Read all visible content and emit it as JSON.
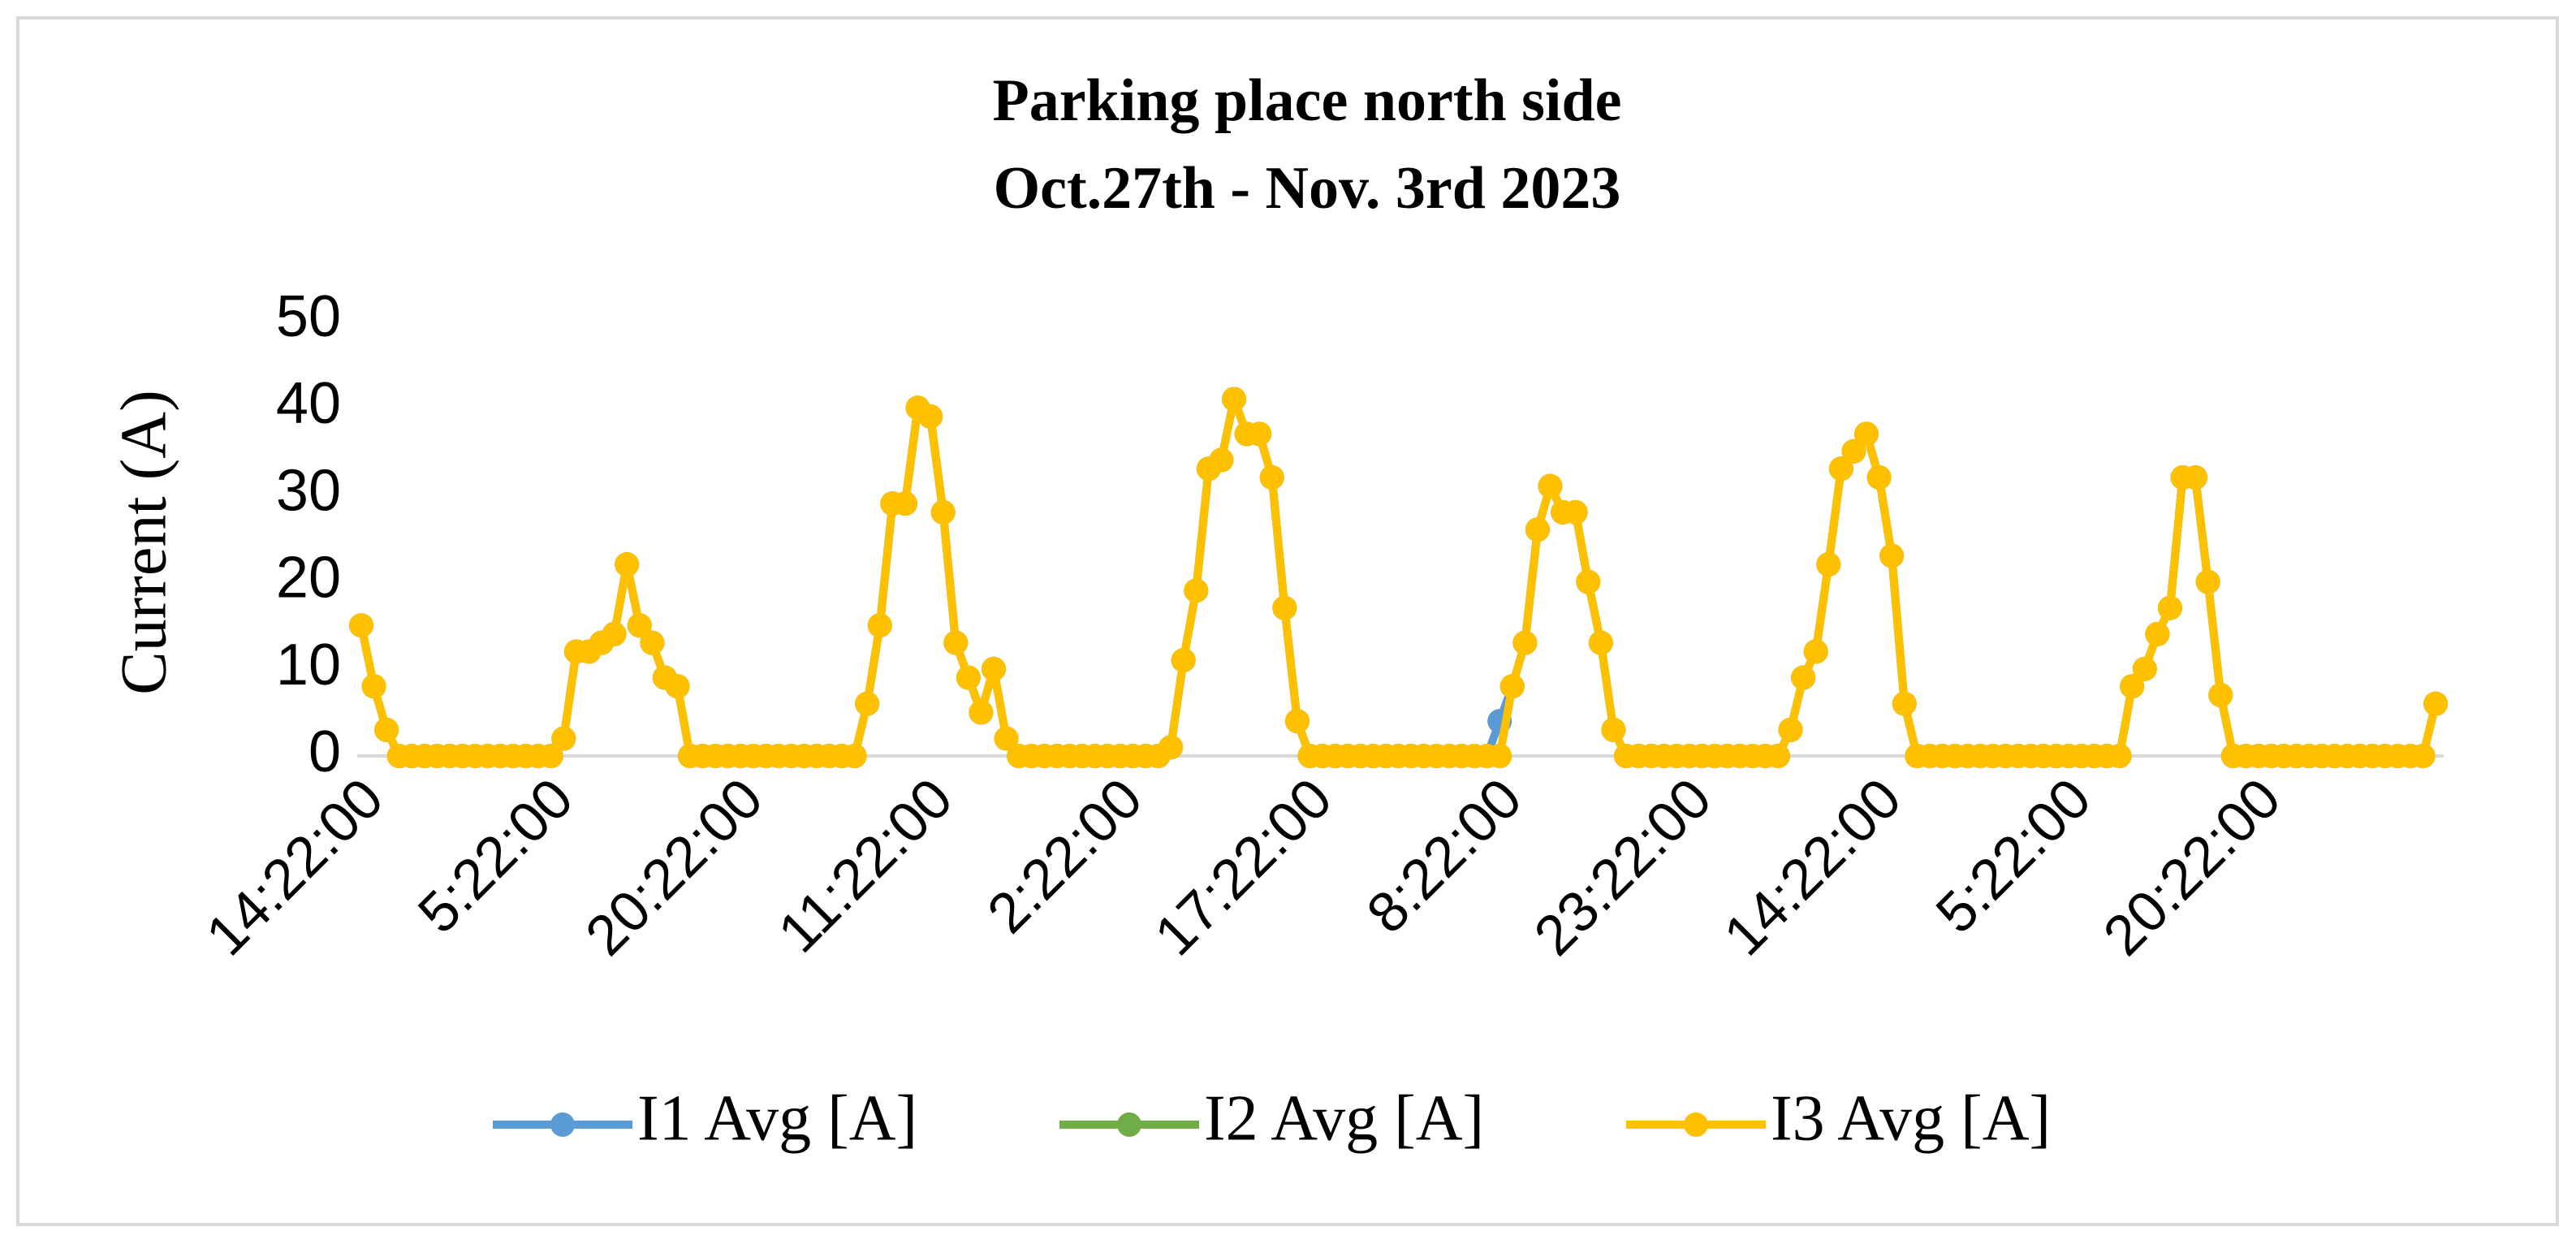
{
  "chart_data": {
    "type": "line",
    "title": "Parking place north side",
    "subtitle": "Oct.27th - Nov. 3rd 2023",
    "y_label": "Current (A)",
    "categories": [
      "14:22:00",
      null,
      null,
      null,
      null,
      null,
      null,
      null,
      null,
      null,
      null,
      null,
      null,
      null,
      null,
      "5:22:00",
      null,
      null,
      null,
      null,
      null,
      null,
      null,
      null,
      null,
      null,
      null,
      null,
      null,
      null,
      "20:22:00",
      null,
      null,
      null,
      null,
      null,
      null,
      null,
      null,
      null,
      null,
      null,
      null,
      null,
      null,
      "11:22:00",
      null,
      null,
      null,
      null,
      null,
      null,
      null,
      null,
      null,
      null,
      null,
      null,
      null,
      null,
      "2:22:00",
      null,
      null,
      null,
      null,
      null,
      null,
      null,
      null,
      null,
      null,
      null,
      null,
      null,
      null,
      "17:22:00",
      null,
      null,
      null,
      null,
      null,
      null,
      null,
      null,
      null,
      null,
      null,
      null,
      null,
      null,
      "8:22:00",
      null,
      null,
      null,
      null,
      null,
      null,
      null,
      null,
      null,
      null,
      null,
      null,
      null,
      null,
      "23:22:00",
      null,
      null,
      null,
      null,
      null,
      null,
      null,
      null,
      null,
      null,
      null,
      null,
      null,
      null,
      "14:22:00",
      null,
      null,
      null,
      null,
      null,
      null,
      null,
      null,
      null,
      null,
      null,
      null,
      null,
      null,
      "5:22:00",
      null,
      null,
      null,
      null,
      null,
      null,
      null,
      null,
      null,
      null,
      null,
      null,
      null,
      null,
      "20:22:00",
      null,
      null,
      null,
      null,
      null,
      null,
      null,
      null,
      null,
      null,
      null,
      null,
      null,
      null
    ],
    "series": [
      {
        "name": "I1 Avg [A]",
        "color": "#5b9bd5",
        "values": [
          15,
          8,
          3,
          0,
          0,
          0,
          0,
          0,
          0,
          0,
          0,
          0,
          0,
          0,
          0,
          0,
          2,
          12,
          12,
          13,
          14,
          22,
          15,
          13,
          9,
          8,
          0,
          0,
          0,
          0,
          0,
          0,
          0,
          0,
          0,
          0,
          0,
          0,
          0,
          0,
          6,
          15,
          29,
          29,
          40,
          39,
          28,
          13,
          9,
          5,
          10,
          2,
          0,
          0,
          0,
          0,
          0,
          0,
          0,
          0,
          0,
          0,
          0,
          0,
          1,
          11,
          19,
          33,
          34,
          41,
          37,
          37,
          32,
          17,
          4,
          0,
          0,
          0,
          0,
          0,
          0,
          0,
          0,
          0,
          0,
          0,
          0,
          0,
          0,
          0,
          4,
          8,
          13,
          26,
          31,
          28,
          28,
          20,
          13,
          3,
          0,
          0,
          0,
          0,
          0,
          0,
          0,
          0,
          0,
          0,
          0,
          0,
          0,
          3,
          9,
          12,
          22,
          33,
          35,
          37,
          32,
          23,
          6,
          0,
          0,
          0,
          0,
          0,
          0,
          0,
          0,
          0,
          0,
          0,
          0,
          0,
          0,
          0,
          0,
          0,
          8,
          10,
          14,
          17,
          32,
          32,
          20,
          7,
          0,
          0,
          0,
          0,
          0,
          0,
          0,
          0,
          0,
          0,
          0,
          0,
          0,
          0,
          0,
          0,
          6
        ]
      },
      {
        "name": "I2 Avg [A]",
        "color": "#70ad47",
        "values": [
          15,
          8,
          3,
          0,
          0,
          0,
          0,
          0,
          0,
          0,
          0,
          0,
          0,
          0,
          0,
          0,
          2,
          12,
          12,
          13,
          14,
          22,
          15,
          13,
          9,
          8,
          0,
          0,
          0,
          0,
          0,
          0,
          0,
          0,
          0,
          0,
          0,
          0,
          0,
          0,
          6,
          15,
          29,
          29,
          40,
          39,
          28,
          13,
          9,
          5,
          10,
          2,
          0,
          0,
          0,
          0,
          0,
          0,
          0,
          0,
          0,
          0,
          0,
          0,
          1,
          11,
          19,
          33,
          34,
          41,
          37,
          37,
          32,
          17,
          4,
          0,
          0,
          0,
          0,
          0,
          0,
          0,
          0,
          0,
          0,
          0,
          0,
          0,
          0,
          0,
          0,
          8,
          13,
          26,
          31,
          28,
          28,
          20,
          13,
          3,
          0,
          0,
          0,
          0,
          0,
          0,
          0,
          0,
          0,
          0,
          0,
          0,
          0,
          3,
          9,
          12,
          22,
          33,
          35,
          37,
          32,
          23,
          6,
          0,
          0,
          0,
          0,
          0,
          0,
          0,
          0,
          0,
          0,
          0,
          0,
          0,
          0,
          0,
          0,
          0,
          8,
          10,
          14,
          17,
          32,
          32,
          20,
          7,
          0,
          0,
          0,
          0,
          0,
          0,
          0,
          0,
          0,
          0,
          0,
          0,
          0,
          0,
          0,
          0,
          6
        ]
      },
      {
        "name": "I3 Avg [A]",
        "color": "#ffc000",
        "values": [
          15,
          8,
          3,
          0,
          0,
          0,
          0,
          0,
          0,
          0,
          0,
          0,
          0,
          0,
          0,
          0,
          2,
          12,
          12,
          13,
          14,
          22,
          15,
          13,
          9,
          8,
          0,
          0,
          0,
          0,
          0,
          0,
          0,
          0,
          0,
          0,
          0,
          0,
          0,
          0,
          6,
          15,
          29,
          29,
          40,
          39,
          28,
          13,
          9,
          5,
          10,
          2,
          0,
          0,
          0,
          0,
          0,
          0,
          0,
          0,
          0,
          0,
          0,
          0,
          1,
          11,
          19,
          33,
          34,
          41,
          37,
          37,
          32,
          17,
          4,
          0,
          0,
          0,
          0,
          0,
          0,
          0,
          0,
          0,
          0,
          0,
          0,
          0,
          0,
          0,
          0,
          8,
          13,
          26,
          31,
          28,
          28,
          20,
          13,
          3,
          0,
          0,
          0,
          0,
          0,
          0,
          0,
          0,
          0,
          0,
          0,
          0,
          0,
          3,
          9,
          12,
          22,
          33,
          35,
          37,
          32,
          23,
          6,
          0,
          0,
          0,
          0,
          0,
          0,
          0,
          0,
          0,
          0,
          0,
          0,
          0,
          0,
          0,
          0,
          0,
          8,
          10,
          14,
          17,
          32,
          32,
          20,
          7,
          0,
          0,
          0,
          0,
          0,
          0,
          0,
          0,
          0,
          0,
          0,
          0,
          0,
          0,
          0,
          0,
          6
        ]
      }
    ],
    "ylim": [
      0,
      50
    ],
    "yticks": [
      0,
      10,
      20,
      30,
      40,
      50
    ],
    "grid": false,
    "legend": "bottom"
  }
}
